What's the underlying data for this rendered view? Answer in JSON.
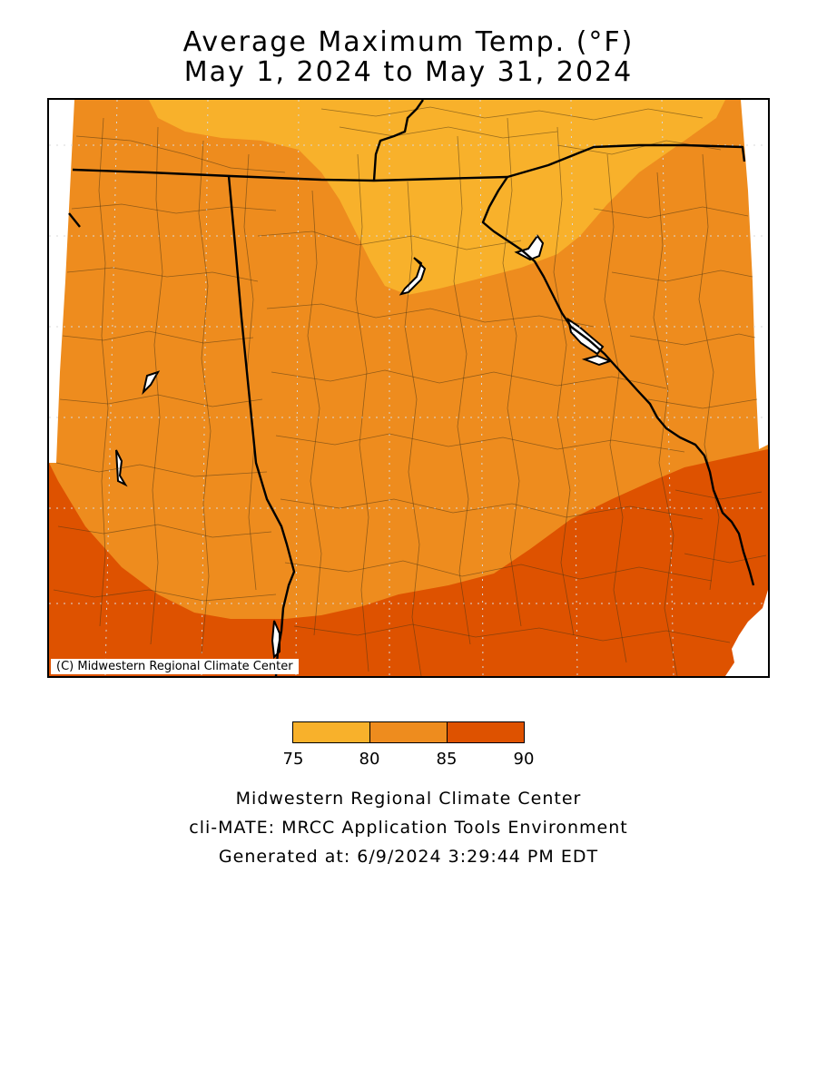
{
  "title": {
    "line1": "Average Maximum Temp. (°F)",
    "line2": "May 1, 2024 to May 31, 2024"
  },
  "map": {
    "copyright": "(C) Midwestern Regional Climate Center",
    "region_colors": {
      "75-80": "#F8B12B",
      "80-85": "#EE8C1E",
      "85-90": "#DE5200"
    }
  },
  "legend": {
    "ticks": [
      "75",
      "80",
      "85",
      "90"
    ],
    "bins": [
      {
        "range": "75-80",
        "color": "#F8B12B"
      },
      {
        "range": "80-85",
        "color": "#EE8C1E"
      },
      {
        "range": "85-90",
        "color": "#DE5200"
      }
    ]
  },
  "footer": {
    "line1": "Midwestern Regional Climate Center",
    "line2": "cli-MATE: MRCC Application Tools Environment",
    "line3": "Generated at: 6/9/2024 3:29:44 PM EDT"
  }
}
